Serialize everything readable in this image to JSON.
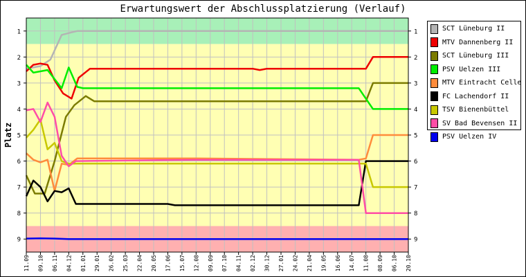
{
  "chart_data": {
    "type": "line",
    "title": "Erwartungswert der Abschlussplatzierung (Verlauf)",
    "xlabel": "",
    "ylabel": "Platz",
    "ylim": [
      0.5,
      9.5
    ],
    "y_inverted": true,
    "yticks": [
      1,
      2,
      3,
      4,
      5,
      6,
      7,
      8,
      9
    ],
    "grid": true,
    "legend_position": "right",
    "zones": [
      {
        "from": 0.5,
        "to": 1.5,
        "color": "#a8f0b8"
      },
      {
        "from": 1.5,
        "to": 8.5,
        "color": "#ffffb3"
      },
      {
        "from": 8.5,
        "to": 9.5,
        "color": "#ffb0b0"
      }
    ],
    "categories": [
      "11.09",
      "09.10",
      "06.11",
      "04.12",
      "01.01",
      "29.01",
      "26.02",
      "25.03",
      "22.04",
      "20.05",
      "17.06",
      "15.07",
      "12.08",
      "09.09",
      "07.10",
      "04.11",
      "02.12",
      "30.12",
      "27.01",
      "24.02",
      "21.04",
      "19.05",
      "16.06",
      "14.07",
      "11.08",
      "08.09",
      "06.10",
      "20.10"
    ],
    "x_ticks": [
      0,
      1,
      2,
      3,
      4,
      5,
      6,
      7,
      8,
      9,
      10,
      11,
      12,
      13,
      14,
      15,
      16,
      17,
      18,
      19,
      20,
      21,
      22,
      23,
      24,
      25,
      26,
      27
    ],
    "series": [
      {
        "name": "SCT Lüneburg II",
        "color": "#b4b4b4",
        "points": [
          [
            0,
            2.45
          ],
          [
            1,
            2.35
          ],
          [
            1.7,
            2.1
          ],
          [
            2.5,
            1.15
          ],
          [
            3.2,
            1.05
          ],
          [
            3.6,
            1.0
          ],
          [
            27,
            1.0
          ]
        ]
      },
      {
        "name": "MTV Dannenberg II",
        "color": "#ee0000",
        "points": [
          [
            0,
            2.55
          ],
          [
            0.5,
            2.3
          ],
          [
            1,
            2.25
          ],
          [
            1.5,
            2.3
          ],
          [
            2,
            2.9
          ],
          [
            2.6,
            3.4
          ],
          [
            3.2,
            3.6
          ],
          [
            3.7,
            2.8
          ],
          [
            4.5,
            2.45
          ],
          [
            16,
            2.45
          ],
          [
            16.5,
            2.5
          ],
          [
            17,
            2.45
          ],
          [
            23.5,
            2.45
          ],
          [
            24,
            2.45
          ],
          [
            24.5,
            2.0
          ],
          [
            27,
            2.0
          ]
        ]
      },
      {
        "name": "SCT Lüneburg III",
        "color": "#7b7b00",
        "points": [
          [
            0,
            6.55
          ],
          [
            0.6,
            7.25
          ],
          [
            1.3,
            7.25
          ],
          [
            2,
            6.0
          ],
          [
            2.8,
            4.3
          ],
          [
            3.4,
            3.85
          ],
          [
            4.2,
            3.5
          ],
          [
            4.8,
            3.7
          ],
          [
            24,
            3.7
          ],
          [
            24.5,
            3.0
          ],
          [
            27,
            3.0
          ]
        ]
      },
      {
        "name": "PSV Uelzen III",
        "color": "#00ee00",
        "points": [
          [
            0,
            2.3
          ],
          [
            0.5,
            2.6
          ],
          [
            1,
            2.55
          ],
          [
            1.5,
            2.5
          ],
          [
            2,
            2.85
          ],
          [
            2.5,
            3.2
          ],
          [
            3,
            2.4
          ],
          [
            3.6,
            3.15
          ],
          [
            4,
            3.2
          ],
          [
            23.5,
            3.2
          ],
          [
            24.5,
            4.0
          ],
          [
            27,
            4.0
          ]
        ]
      },
      {
        "name": "MTV Eintracht Celle",
        "color": "#ff8c3c",
        "points": [
          [
            0,
            5.7
          ],
          [
            0.5,
            5.95
          ],
          [
            1,
            6.05
          ],
          [
            1.5,
            5.95
          ],
          [
            2,
            7.15
          ],
          [
            2.5,
            6.1
          ],
          [
            3,
            6.15
          ],
          [
            3.6,
            5.9
          ],
          [
            11,
            5.9
          ],
          [
            12,
            5.9
          ],
          [
            23.5,
            5.95
          ],
          [
            24,
            5.9
          ],
          [
            24.5,
            5.0
          ],
          [
            27,
            5.0
          ]
        ]
      },
      {
        "name": "FC Lachendorf II",
        "color": "#000000",
        "points": [
          [
            0,
            7.35
          ],
          [
            0.5,
            6.75
          ],
          [
            1,
            7.0
          ],
          [
            1.5,
            7.55
          ],
          [
            2,
            7.15
          ],
          [
            2.5,
            7.2
          ],
          [
            3,
            7.05
          ],
          [
            3.5,
            7.65
          ],
          [
            10,
            7.65
          ],
          [
            10.5,
            7.7
          ],
          [
            23.5,
            7.7
          ],
          [
            24,
            6.0
          ],
          [
            27,
            6.0
          ]
        ]
      },
      {
        "name": "TSV Bienenbüttel",
        "color": "#c8c800",
        "points": [
          [
            0,
            5.1
          ],
          [
            0.5,
            4.8
          ],
          [
            1,
            4.4
          ],
          [
            1.5,
            5.55
          ],
          [
            2,
            5.3
          ],
          [
            2.5,
            6.0
          ],
          [
            3,
            6.1
          ],
          [
            3.5,
            6.1
          ],
          [
            23.5,
            6.1
          ],
          [
            24,
            6.1
          ],
          [
            24.5,
            7.0
          ],
          [
            27,
            7.0
          ]
        ]
      },
      {
        "name": "SV Bad Bevensen II",
        "color": "#ff4da6",
        "points": [
          [
            0,
            4.05
          ],
          [
            0.5,
            4.0
          ],
          [
            1,
            4.5
          ],
          [
            1.5,
            3.75
          ],
          [
            2,
            4.3
          ],
          [
            2.5,
            5.8
          ],
          [
            3,
            6.2
          ],
          [
            3.5,
            6.0
          ],
          [
            12,
            5.95
          ],
          [
            23.5,
            5.95
          ],
          [
            24,
            8.0
          ],
          [
            27,
            8.0
          ]
        ]
      },
      {
        "name": "PSV Uelzen IV",
        "color": "#0000ee",
        "points": [
          [
            0,
            8.98
          ],
          [
            1,
            8.97
          ],
          [
            2,
            8.98
          ],
          [
            3,
            9.0
          ],
          [
            27,
            9.0
          ]
        ]
      }
    ]
  }
}
